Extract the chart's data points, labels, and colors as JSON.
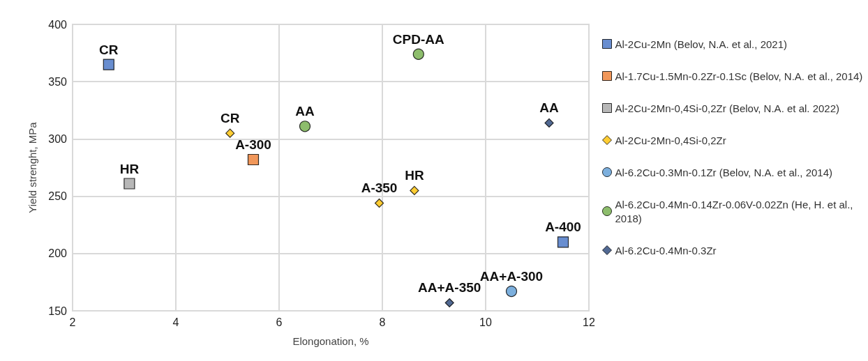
{
  "chart_data": {
    "type": "scatter",
    "xlabel": "Elongonation, %",
    "ylabel": "Yield strenght, MPa",
    "xlim": [
      2,
      12
    ],
    "xticks": [
      2,
      4,
      6,
      8,
      10,
      12
    ],
    "ylim": [
      150,
      400
    ],
    "yticks": [
      150,
      200,
      250,
      300,
      350,
      400
    ],
    "grid": true,
    "legend": "right",
    "series": [
      {
        "name": "Al-2Cu-2Mn (Belov, N.A. et al., 2021)",
        "color": "#4472c4",
        "marker": "square",
        "x": [
          2.7,
          11.5
        ],
        "values": [
          365,
          210
        ]
      },
      {
        "name": "Al-1.7Cu-1.5Mn-0.2Zr-0.1Sc (Belov, N.A. et al., 2014)",
        "color": "#ed7d31",
        "marker": "square",
        "x": [
          5.5
        ],
        "values": [
          282
        ]
      },
      {
        "name": "Al-2Cu-2Mn-0,4Si-0,2Zr (Belov, N.A. et al. 2022)",
        "color": "#a5a5a5",
        "marker": "square",
        "x": [
          3.1
        ],
        "values": [
          261
        ]
      },
      {
        "name": "Al-2Cu-2Mn-0,4Si-0,2Zr",
        "color": "#ffc000",
        "marker": "diamond",
        "x": [
          5.05,
          7.94,
          8.62
        ],
        "values": [
          305,
          244,
          255
        ]
      },
      {
        "name": "Al-6.2Cu-0.3Mn-0.1Zr (Belov, N.A. et al., 2014)",
        "color": "#5b9bd5",
        "marker": "circle",
        "x": [
          10.5
        ],
        "values": [
          167
        ]
      },
      {
        "name": "Al-6.2Cu-0.4Mn-0.14Zr-0.06V-0.02Zn (He, H. et al., 2018)",
        "color": "#70ad47",
        "marker": "circle",
        "x": [
          6.5,
          8.7
        ],
        "values": [
          311,
          374
        ]
      },
      {
        "name": "Al-6.2Cu-0.4Mn-0.3Zr",
        "color": "#264478",
        "marker": "diamond",
        "x": [
          11.23,
          9.3
        ],
        "values": [
          314,
          157
        ]
      }
    ],
    "annotations": [
      {
        "text": "CR",
        "x": 2.7,
        "y": 365
      },
      {
        "text": "A-400",
        "x": 11.5,
        "y": 210
      },
      {
        "text": "A-300",
        "x": 5.5,
        "y": 282
      },
      {
        "text": "HR",
        "x": 3.1,
        "y": 261
      },
      {
        "text": "CR",
        "x": 5.05,
        "y": 305
      },
      {
        "text": "A-350",
        "x": 7.94,
        "y": 244
      },
      {
        "text": "HR",
        "x": 8.62,
        "y": 255
      },
      {
        "text": "AA+A-300",
        "x": 10.5,
        "y": 167
      },
      {
        "text": "AA",
        "x": 6.5,
        "y": 311
      },
      {
        "text": "CPD-AA",
        "x": 8.7,
        "y": 374
      },
      {
        "text": "AA",
        "x": 11.23,
        "y": 314
      },
      {
        "text": "AA+A-350",
        "x": 9.3,
        "y": 157
      }
    ]
  }
}
